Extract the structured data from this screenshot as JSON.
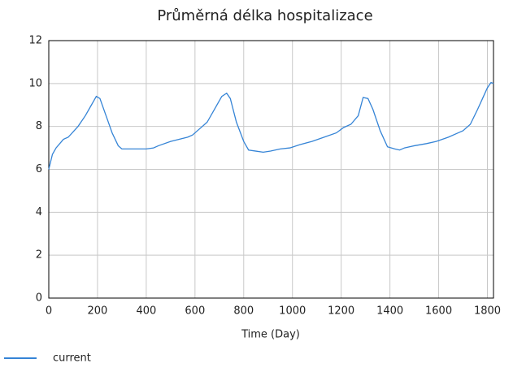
{
  "chart_data": {
    "type": "line",
    "title": "Průměrná délka hospitalizace",
    "x_label": "Time (Day)",
    "x": [
      0,
      15,
      30,
      60,
      80,
      120,
      150,
      175,
      195,
      210,
      235,
      260,
      285,
      300,
      350,
      400,
      430,
      450,
      500,
      570,
      590,
      620,
      650,
      680,
      710,
      730,
      745,
      770,
      800,
      820,
      850,
      880,
      910,
      950,
      990,
      1030,
      1080,
      1130,
      1180,
      1210,
      1240,
      1270,
      1290,
      1310,
      1330,
      1360,
      1390,
      1420,
      1440,
      1460,
      1500,
      1550,
      1590,
      1640,
      1680,
      1700,
      1730,
      1760,
      1780,
      1800,
      1815,
      1825
    ],
    "series": [
      {
        "name": "current",
        "color": "#3584d6",
        "values": [
          6.0,
          6.7,
          7.0,
          7.4,
          7.5,
          8.0,
          8.5,
          9.0,
          9.4,
          9.3,
          8.5,
          7.7,
          7.1,
          6.95,
          6.95,
          6.95,
          7.0,
          7.1,
          7.3,
          7.5,
          7.6,
          7.9,
          8.2,
          8.8,
          9.4,
          9.55,
          9.3,
          8.2,
          7.3,
          6.9,
          6.85,
          6.8,
          6.85,
          6.95,
          7.0,
          7.15,
          7.3,
          7.5,
          7.7,
          7.95,
          8.1,
          8.5,
          9.35,
          9.3,
          8.8,
          7.8,
          7.05,
          6.95,
          6.9,
          7.0,
          7.1,
          7.2,
          7.3,
          7.5,
          7.7,
          7.8,
          8.1,
          8.8,
          9.3,
          9.8,
          10.05,
          10.0
        ]
      }
    ],
    "xlim": [
      0,
      1825
    ],
    "ylim": [
      0,
      12
    ],
    "xticks": [
      0,
      200,
      400,
      600,
      800,
      1000,
      1200,
      1400,
      1600,
      1800
    ],
    "yticks": [
      0,
      2,
      4,
      6,
      8,
      10,
      12
    ],
    "grid": true,
    "legend": "bottom-left"
  }
}
